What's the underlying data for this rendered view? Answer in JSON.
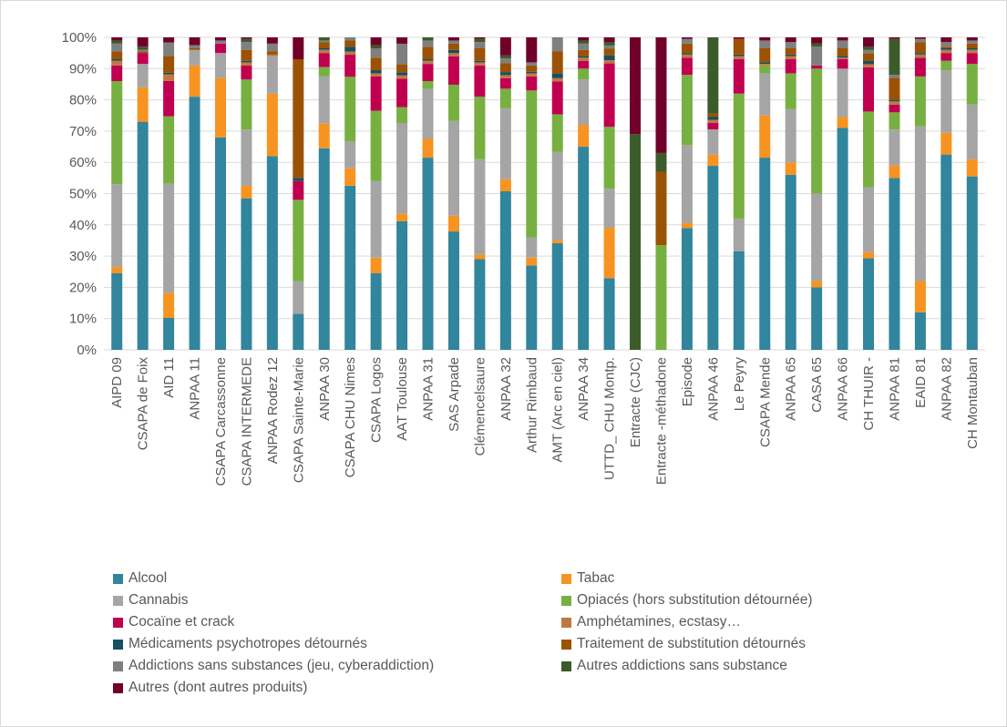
{
  "chart_data": {
    "type": "bar",
    "stacked": true,
    "percent": true,
    "ylim": [
      0,
      100
    ],
    "yticks": [
      "0%",
      "10%",
      "20%",
      "30%",
      "40%",
      "50%",
      "60%",
      "70%",
      "80%",
      "90%",
      "100%"
    ],
    "grid": true,
    "legend_position": "bottom",
    "categories": [
      "AIPD 09",
      "CSAPA de Foix",
      "AID 11",
      "ANPAA 11",
      "CSAPA Carcassonne",
      "CSAPA INTERMEDE",
      "ANPAA Rodez 12",
      "CSAPA Sainte-Marie",
      "ANPAA 30",
      "CSAPA CHU Nimes",
      "CSAPA Logos",
      "AAT Toulouse",
      "ANPAA 31",
      "SAS Arpade",
      "Clémencelsaure",
      "ANPAA 32",
      "Arthur Rimbaud",
      "AMT (Arc en ciel)",
      "ANPAA 34",
      "UTTD_ CHU Montp.",
      "Entracte (CJC)",
      "Entracte -méthadone",
      "Episode",
      "ANPAA 46",
      "Le Peyry",
      "CSAPA Mende",
      "ANPAA 65",
      "CASA 65",
      "ANPAA 66",
      "CH THUIR -",
      "ANPAA 81",
      "EAID 81",
      "ANPAA 82",
      "CH Montauban"
    ],
    "series": [
      {
        "name": "Alcool",
        "color": "#31859c",
        "values": [
          24.5,
          73,
          9.5,
          81,
          68,
          48.5,
          62,
          11.5,
          64.5,
          52,
          24.5,
          40.5,
          61.5,
          37.5,
          29,
          52.5,
          27,
          34,
          65,
          22,
          0,
          0,
          39,
          58,
          31.5,
          61.5,
          56,
          20,
          71,
          29,
          55,
          12,
          62.5,
          55.5
        ]
      },
      {
        "name": "Tabac",
        "color": "#f79321",
        "values": [
          2,
          11,
          7.5,
          10,
          19,
          4,
          20,
          0,
          8,
          5.5,
          5,
          2.5,
          6,
          5,
          1.5,
          4,
          2.5,
          1,
          7,
          15.5,
          0,
          0,
          1.5,
          3.5,
          0,
          13.5,
          4,
          2,
          3.5,
          2,
          4,
          10,
          7,
          5.5
        ]
      },
      {
        "name": "Cannabis",
        "color": "#a5a5a5",
        "values": [
          26.5,
          7.5,
          32.5,
          5,
          8,
          18,
          12,
          10.5,
          15,
          8.5,
          24.5,
          28.5,
          16,
          30,
          30.5,
          23.5,
          6.5,
          28,
          14.5,
          12,
          0,
          0,
          25,
          8,
          10.5,
          13.5,
          17,
          28,
          15.5,
          20.5,
          11.5,
          49.5,
          20,
          17.5
        ]
      },
      {
        "name": "Opiacés (hors substitution détournée)",
        "color": "#77b041",
        "values": [
          33,
          0,
          20,
          0,
          0,
          16,
          0,
          26,
          3,
          20.5,
          22.5,
          5,
          2.5,
          11.5,
          20,
          6.5,
          47,
          12,
          3.5,
          19,
          0,
          33.5,
          22.5,
          0,
          40,
          2.5,
          11.5,
          40,
          0,
          24,
          5.5,
          16,
          3,
          13
        ]
      },
      {
        "name": "Cocaïne et crack",
        "color": "#c0004f",
        "values": [
          5,
          3.5,
          10.5,
          0,
          3,
          4.5,
          0,
          6,
          4.5,
          7,
          11,
          9,
          5.5,
          9,
          10,
          3.5,
          4.5,
          10.5,
          2.5,
          19.5,
          0,
          0,
          5.5,
          2,
          11,
          0,
          4.5,
          1,
          3,
          14,
          2.5,
          6,
          2.5,
          3.5
        ]
      },
      {
        "name": "Amphétamines, ecstasy…",
        "color": "#c07840",
        "values": [
          1.5,
          0,
          2,
          0,
          0,
          1,
          0.5,
          0,
          1,
          1,
          1,
          1,
          1,
          1,
          1,
          1,
          1,
          1,
          1,
          1,
          0,
          0,
          1,
          1,
          1,
          0.5,
          1,
          0,
          0.5,
          1,
          1,
          1,
          1,
          1
        ]
      },
      {
        "name": "Médicaments psychotropes détournés",
        "color": "#17505f",
        "values": [
          0.5,
          0,
          0.5,
          0,
          0,
          0.5,
          0,
          1,
          0.5,
          1.5,
          1,
          1,
          0.5,
          1,
          0.5,
          1,
          0.5,
          1.5,
          0.5,
          1.5,
          0,
          0,
          0.5,
          1,
          0.5,
          0.5,
          0.5,
          0,
          0.5,
          1,
          0.5,
          0.5,
          0.5,
          0.5
        ]
      },
      {
        "name": "Traitement de substitution détournés",
        "color": "#9b5204",
        "values": [
          2.5,
          0.5,
          5,
          0.5,
          0,
          3.5,
          1,
          38,
          2,
          2,
          4,
          2.5,
          4,
          2,
          4,
          3,
          2,
          7,
          2,
          2,
          0,
          23.5,
          3,
          1,
          5,
          4.5,
          2,
          0,
          2.5,
          2.5,
          7,
          3.5,
          0.5,
          1.5
        ]
      },
      {
        "name": "Addictions sans substances (jeu, cyberaddiction)",
        "color": "#7f7f7f",
        "values": [
          2.5,
          0.5,
          4,
          1,
          1,
          2.5,
          2.5,
          0,
          0.5,
          1,
          3,
          6.5,
          2,
          1,
          2,
          1.5,
          1,
          4.5,
          2,
          1,
          0,
          0,
          1.5,
          0,
          0,
          2.5,
          2,
          6,
          2.5,
          1,
          1,
          1,
          1.5,
          1
        ]
      },
      {
        "name": "Autres addictions sans substance",
        "color": "#3b5c2a",
        "values": [
          1,
          1,
          0,
          0,
          0,
          1,
          0,
          0,
          1,
          0,
          1,
          0,
          1,
          0,
          1,
          1,
          0,
          0,
          1,
          1,
          69,
          6,
          0,
          24,
          0,
          0,
          0,
          1,
          0,
          1,
          11.5,
          0,
          0,
          0
        ]
      },
      {
        "name": "Autres (dont autres produits)",
        "color": "#70002a",
        "values": [
          1,
          3,
          1.5,
          2.5,
          1,
          0.5,
          2,
          7,
          0,
          0,
          2.5,
          2,
          0,
          1,
          0.5,
          6,
          8,
          0,
          1,
          1.5,
          31,
          37,
          0.5,
          0,
          0.5,
          1,
          1.5,
          2,
          1,
          3,
          0.5,
          0.5,
          1.5,
          1
        ]
      }
    ]
  }
}
